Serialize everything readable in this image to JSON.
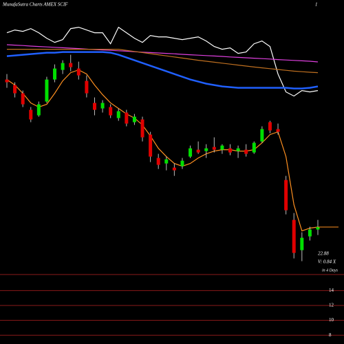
{
  "chart_data": {
    "type": "candlestick",
    "title": "MunafaSutra Charts AMEX SCIF",
    "corner_label": "1",
    "annotations": [
      "22.88",
      "V: 0.84 X",
      "in 4 Days"
    ],
    "ylim": [
      19.38,
      39.38
    ],
    "up_color": "#00e000",
    "down_color": "#e00000",
    "open": [
      33.6,
      33.2,
      32.6,
      31.4,
      31.0,
      32.0,
      33.6,
      34.3,
      34.8,
      34.4,
      33.5,
      31.9,
      31.5,
      31.6,
      30.8,
      31.2,
      30.5,
      30.7,
      29.6,
      27.9,
      27.5,
      27.2,
      27.3,
      28.0,
      28.5,
      28.4,
      28.7,
      28.5,
      28.6,
      28.4,
      28.5,
      28.3,
      29.1,
      30.5,
      30.0,
      26.3,
      23.4,
      21.2,
      22.2,
      22.7
    ],
    "high": [
      34.0,
      33.4,
      32.8,
      31.6,
      32.0,
      33.8,
      34.7,
      35.0,
      35.4,
      34.9,
      33.9,
      32.3,
      32.1,
      31.8,
      31.5,
      31.4,
      31.1,
      30.9,
      29.8,
      28.2,
      28.0,
      27.5,
      27.9,
      28.8,
      29.1,
      28.9,
      29.4,
      28.9,
      28.9,
      28.8,
      28.9,
      29.1,
      30.2,
      30.6,
      30.4,
      26.6,
      23.9,
      22.5,
      22.9,
      23.4
    ],
    "low": [
      33.0,
      32.3,
      31.6,
      30.5,
      30.9,
      31.9,
      33.4,
      34.0,
      34.2,
      33.6,
      32.3,
      31.0,
      31.2,
      30.8,
      30.6,
      30.2,
      30.3,
      29.1,
      27.6,
      27.1,
      27.0,
      26.6,
      27.1,
      27.9,
      28.2,
      27.9,
      28.3,
      28.2,
      28.1,
      27.9,
      28.0,
      28.2,
      29.0,
      29.7,
      29.6,
      23.8,
      20.6,
      20.4,
      21.9,
      22.3
    ],
    "close": [
      33.4,
      32.6,
      31.8,
      30.7,
      31.8,
      33.6,
      34.4,
      34.8,
      34.5,
      33.9,
      32.6,
      31.4,
      31.9,
      31.0,
      31.3,
      30.4,
      30.9,
      29.4,
      28.0,
      27.4,
      27.8,
      27.0,
      27.7,
      28.6,
      28.3,
      28.6,
      28.5,
      28.8,
      28.3,
      28.6,
      28.2,
      29.0,
      30.0,
      29.9,
      29.8,
      24.1,
      21.0,
      22.1,
      22.7,
      22.88
    ],
    "series": [
      {
        "color": "#ffffff",
        "values": [
          37.0,
          37.2,
          37.1,
          37.3,
          37.0,
          36.6,
          36.3,
          36.5,
          37.3,
          37.4,
          37.2,
          37.0,
          37.0,
          36.2,
          37.4,
          37.0,
          36.6,
          36.3,
          36.8,
          36.7,
          36.7,
          36.6,
          36.5,
          36.6,
          36.7,
          36.4,
          36.0,
          35.8,
          35.9,
          35.5,
          35.6,
          36.2,
          36.4,
          36.0,
          34.0,
          32.7,
          32.4,
          32.8,
          32.7,
          32.8
        ]
      },
      {
        "color": "#e040e0",
        "values": [
          36.13,
          36.1,
          36.07,
          36.03,
          36.0,
          35.97,
          35.94,
          35.91,
          35.88,
          35.85,
          35.81,
          35.78,
          35.75,
          35.72,
          35.69,
          35.66,
          35.62,
          35.59,
          35.56,
          35.53,
          35.5,
          35.47,
          35.43,
          35.4,
          35.37,
          35.34,
          35.31,
          35.28,
          35.24,
          35.21,
          35.18,
          35.15,
          35.12,
          35.09,
          35.05,
          35.02,
          34.99,
          34.96,
          34.93,
          34.88
        ]
      },
      {
        "color": "#c07020",
        "values": [
          35.8,
          35.8,
          35.8,
          35.8,
          35.8,
          35.8,
          35.8,
          35.8,
          35.8,
          35.8,
          35.8,
          35.8,
          35.8,
          35.8,
          35.8,
          35.72,
          35.64,
          35.56,
          35.48,
          35.4,
          35.32,
          35.24,
          35.16,
          35.08,
          35.0,
          34.93,
          34.86,
          34.79,
          34.72,
          34.65,
          34.58,
          34.51,
          34.45,
          34.39,
          34.33,
          34.27,
          34.21,
          34.17,
          34.13,
          34.1
        ]
      },
      {
        "color": "#2060ff",
        "values": [
          35.3,
          35.35,
          35.4,
          35.45,
          35.5,
          35.55,
          35.55,
          35.6,
          35.6,
          35.6,
          35.6,
          35.6,
          35.6,
          35.55,
          35.4,
          35.2,
          35.0,
          34.8,
          34.6,
          34.4,
          34.2,
          34.0,
          33.8,
          33.6,
          33.45,
          33.3,
          33.2,
          33.1,
          33.05,
          33.0,
          33.0,
          33.0,
          33.0,
          33.0,
          33.0,
          33.0,
          32.95,
          32.95,
          33.0,
          33.1
        ]
      },
      {
        "color": "#ff9020",
        "values": [
          33.6,
          33.2,
          32.6,
          31.9,
          31.6,
          31.8,
          32.6,
          33.5,
          34.1,
          34.3,
          34.0,
          33.2,
          32.5,
          31.9,
          31.5,
          31.1,
          30.8,
          30.3,
          29.5,
          28.6,
          28.0,
          27.5,
          27.3,
          27.5,
          27.9,
          28.2,
          28.4,
          28.5,
          28.5,
          28.4,
          28.4,
          28.5,
          29.0,
          29.6,
          29.8,
          28.0,
          24.5,
          22.6,
          22.8,
          22.88
        ]
      }
    ],
    "y2lim": [
      7,
      17
    ],
    "y2ticks": [
      14,
      12,
      10,
      8
    ]
  }
}
